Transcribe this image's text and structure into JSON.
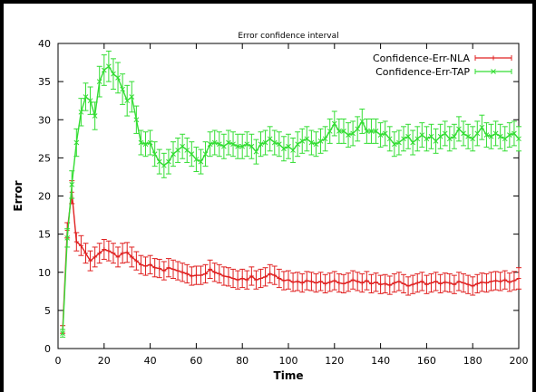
{
  "chart_data": {
    "type": "line",
    "title": "Error confidence interval",
    "xlabel": "Time",
    "ylabel": "Error",
    "xlim": [
      0,
      200
    ],
    "ylim": [
      0,
      40
    ],
    "xticks": [
      0,
      20,
      40,
      60,
      80,
      100,
      120,
      140,
      160,
      180,
      200
    ],
    "yticks": [
      0,
      5,
      10,
      15,
      20,
      25,
      30,
      35,
      40
    ],
    "grid": false,
    "legend_position": "top-right",
    "x": [
      2,
      4,
      6,
      8,
      10,
      12,
      14,
      16,
      18,
      20,
      22,
      24,
      26,
      28,
      30,
      32,
      34,
      36,
      38,
      40,
      42,
      44,
      46,
      48,
      50,
      52,
      54,
      56,
      58,
      60,
      62,
      64,
      66,
      68,
      70,
      72,
      74,
      76,
      78,
      80,
      82,
      84,
      86,
      88,
      90,
      92,
      94,
      96,
      98,
      100,
      102,
      104,
      106,
      108,
      110,
      112,
      114,
      116,
      118,
      120,
      122,
      124,
      126,
      128,
      130,
      132,
      134,
      136,
      138,
      140,
      142,
      144,
      146,
      148,
      150,
      152,
      154,
      156,
      158,
      160,
      162,
      164,
      166,
      168,
      170,
      172,
      174,
      176,
      178,
      180,
      182,
      184,
      186,
      188,
      190,
      192,
      194,
      196,
      198,
      200
    ],
    "series": [
      {
        "name": "Confidence-Err-NLA",
        "color": "#e02020",
        "marker": "plus",
        "values": [
          2.5,
          15.5,
          20.5,
          14.0,
          13.5,
          12.5,
          11.5,
          12.0,
          12.5,
          13.0,
          12.8,
          12.5,
          12.0,
          12.5,
          12.6,
          12.0,
          11.5,
          11.0,
          10.8,
          11.0,
          10.6,
          10.5,
          10.2,
          10.6,
          10.4,
          10.2,
          10.0,
          9.8,
          9.5,
          9.6,
          9.6,
          9.8,
          10.4,
          10.0,
          9.8,
          9.5,
          9.4,
          9.2,
          9.0,
          9.2,
          9.0,
          9.5,
          9.0,
          9.2,
          9.4,
          9.8,
          9.6,
          9.2,
          8.9,
          9.0,
          8.7,
          8.8,
          8.6,
          8.9,
          8.8,
          8.6,
          8.8,
          8.5,
          8.7,
          8.9,
          8.6,
          8.5,
          8.7,
          9.0,
          8.8,
          8.6,
          8.9,
          8.5,
          8.7,
          8.4,
          8.5,
          8.3,
          8.6,
          8.8,
          8.5,
          8.2,
          8.4,
          8.6,
          8.8,
          8.4,
          8.6,
          8.8,
          8.5,
          8.7,
          8.6,
          8.4,
          8.8,
          8.6,
          8.4,
          8.2,
          8.5,
          8.7,
          8.6,
          8.8,
          8.9,
          8.8,
          9.0,
          8.7,
          8.9,
          9.2
        ],
        "err": [
          0.5,
          1.0,
          1.5,
          1.2,
          1.3,
          1.3,
          1.3,
          1.3,
          1.3,
          1.3,
          1.3,
          1.3,
          1.3,
          1.3,
          1.3,
          1.3,
          1.2,
          1.2,
          1.2,
          1.2,
          1.2,
          1.2,
          1.2,
          1.2,
          1.2,
          1.2,
          1.2,
          1.2,
          1.2,
          1.2,
          1.2,
          1.2,
          1.2,
          1.2,
          1.2,
          1.2,
          1.2,
          1.2,
          1.2,
          1.2,
          1.2,
          1.2,
          1.2,
          1.2,
          1.2,
          1.2,
          1.2,
          1.2,
          1.2,
          1.2,
          1.2,
          1.2,
          1.2,
          1.2,
          1.2,
          1.2,
          1.2,
          1.2,
          1.2,
          1.2,
          1.2,
          1.2,
          1.2,
          1.2,
          1.2,
          1.2,
          1.2,
          1.2,
          1.2,
          1.2,
          1.2,
          1.2,
          1.2,
          1.2,
          1.2,
          1.2,
          1.2,
          1.2,
          1.2,
          1.2,
          1.2,
          1.2,
          1.2,
          1.2,
          1.2,
          1.2,
          1.2,
          1.2,
          1.2,
          1.2,
          1.2,
          1.2,
          1.2,
          1.2,
          1.2,
          1.2,
          1.2,
          1.2,
          1.2,
          1.4
        ]
      },
      {
        "name": "Confidence-Err-TAP",
        "color": "#33dd33",
        "marker": "cross",
        "values": [
          2.0,
          14.5,
          21.5,
          27.0,
          31.0,
          33.0,
          32.5,
          30.5,
          35.0,
          36.5,
          37.0,
          36.0,
          35.5,
          34.0,
          32.5,
          33.0,
          30.0,
          27.0,
          26.8,
          27.0,
          25.5,
          24.5,
          24.0,
          24.5,
          25.5,
          26.0,
          26.5,
          26.0,
          25.5,
          24.8,
          24.5,
          25.5,
          26.8,
          27.0,
          26.8,
          26.5,
          27.0,
          26.8,
          26.5,
          26.5,
          26.8,
          26.5,
          25.8,
          26.8,
          27.0,
          27.5,
          27.0,
          26.8,
          26.2,
          26.5,
          26.0,
          26.8,
          27.2,
          27.5,
          27.0,
          26.8,
          27.2,
          27.5,
          28.5,
          29.5,
          28.5,
          28.5,
          28.0,
          28.2,
          28.8,
          29.8,
          28.5,
          28.5,
          28.5,
          28.0,
          28.2,
          27.5,
          26.8,
          27.0,
          27.5,
          27.8,
          27.0,
          27.5,
          28.0,
          27.5,
          27.8,
          27.2,
          27.8,
          28.2,
          27.5,
          27.8,
          28.8,
          28.2,
          27.8,
          27.5,
          28.2,
          29.0,
          28.0,
          27.8,
          28.2,
          27.8,
          27.5,
          28.0,
          28.2,
          27.5
        ],
        "err": [
          0.5,
          1.2,
          1.8,
          1.8,
          1.8,
          1.8,
          1.8,
          1.8,
          2.0,
          2.0,
          2.0,
          2.0,
          2.0,
          2.0,
          2.0,
          2.0,
          1.8,
          1.6,
          1.6,
          1.6,
          1.6,
          1.6,
          1.6,
          1.6,
          1.6,
          1.6,
          1.6,
          1.6,
          1.6,
          1.6,
          1.6,
          1.6,
          1.6,
          1.6,
          1.6,
          1.6,
          1.6,
          1.6,
          1.6,
          1.6,
          1.6,
          1.6,
          1.6,
          1.6,
          1.6,
          1.6,
          1.6,
          1.6,
          1.6,
          1.6,
          1.6,
          1.6,
          1.6,
          1.6,
          1.6,
          1.6,
          1.6,
          1.6,
          1.6,
          1.6,
          1.6,
          1.6,
          1.6,
          1.6,
          1.6,
          1.6,
          1.6,
          1.6,
          1.6,
          1.6,
          1.6,
          1.6,
          1.6,
          1.6,
          1.6,
          1.6,
          1.6,
          1.6,
          1.6,
          1.6,
          1.6,
          1.6,
          1.6,
          1.6,
          1.6,
          1.6,
          1.6,
          1.6,
          1.6,
          1.6,
          1.6,
          1.6,
          1.6,
          1.6,
          1.6,
          1.6,
          1.6,
          1.6,
          1.6,
          1.6
        ]
      }
    ]
  }
}
